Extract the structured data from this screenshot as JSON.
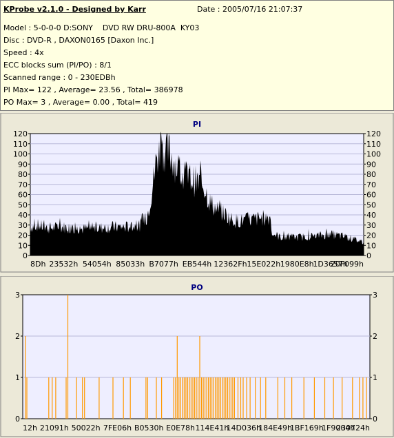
{
  "info": {
    "title": "KProbe v2.1.0 - Designed by Karr",
    "date": "Date : 2005/07/16 21:07:37",
    "lines": [
      "Model : 5-0-0-0 D:SONY    DVD RW DRU-800A  KY03",
      "Disc : DVD-R , DAXON0165 [Daxon Inc.]",
      "Speed : 4x",
      "ECC blocks sum (PI/PO) : 8/1",
      "Scanned range : 0 - 230EDBh",
      "PI Max= 122 , Average= 23.56 , Total= 386978",
      "PO Max= 3 , Average= 0.00 , Total= 419"
    ]
  },
  "colors": {
    "background": "#ece9d8",
    "info_bg": "#ffffe1",
    "plot_bg": "#eeeeff",
    "pi_fill": "#000000",
    "po_bar": "#ff9900",
    "title_blue": "#000080"
  },
  "chart_data": [
    {
      "type": "area",
      "title": "PI",
      "ylim": [
        0,
        120
      ],
      "yticks": [
        0,
        10,
        20,
        30,
        40,
        50,
        60,
        70,
        80,
        90,
        100,
        110,
        120
      ],
      "xtick_labels": [
        "8Dh",
        "23532h",
        "54054h",
        "85033h",
        "B7077h",
        "EB544h",
        "12362Fh",
        "15E022h",
        "1980E8h",
        "1D3657h",
        "20F099h"
      ],
      "grid": true,
      "x_range_hex": [
        "0",
        "230EDB"
      ],
      "profile": [
        [
          0.0,
          28
        ],
        [
          0.02,
          30
        ],
        [
          0.05,
          27
        ],
        [
          0.1,
          28
        ],
        [
          0.15,
          26
        ],
        [
          0.2,
          27
        ],
        [
          0.25,
          28
        ],
        [
          0.3,
          28
        ],
        [
          0.33,
          30
        ],
        [
          0.35,
          38
        ],
        [
          0.36,
          55
        ],
        [
          0.37,
          75
        ],
        [
          0.38,
          98
        ],
        [
          0.4,
          105
        ],
        [
          0.42,
          100
        ],
        [
          0.44,
          88
        ],
        [
          0.46,
          78
        ],
        [
          0.48,
          76
        ],
        [
          0.5,
          72
        ],
        [
          0.52,
          70
        ],
        [
          0.53,
          60
        ],
        [
          0.54,
          52
        ],
        [
          0.56,
          45
        ],
        [
          0.58,
          42
        ],
        [
          0.6,
          36
        ],
        [
          0.62,
          34
        ],
        [
          0.66,
          35
        ],
        [
          0.7,
          37
        ],
        [
          0.72,
          38
        ],
        [
          0.725,
          22
        ],
        [
          0.75,
          18
        ],
        [
          0.8,
          18
        ],
        [
          0.85,
          19
        ],
        [
          0.9,
          21
        ],
        [
          0.95,
          18
        ],
        [
          1.0,
          13
        ]
      ],
      "peak": {
        "at": 0.39,
        "value": 122
      }
    },
    {
      "type": "bar",
      "title": "PO",
      "ylim": [
        0,
        3
      ],
      "yticks": [
        0,
        1,
        2,
        3
      ],
      "xtick_labels": [
        "12h",
        "21091h",
        "50022h",
        "7FE06h",
        "B0530h",
        "E0E78h",
        "114E41h",
        "14D036h",
        "184E49h",
        "1BF169h",
        "1F9004h",
        "230724h"
      ],
      "grid": true,
      "events": [
        [
          0.008,
          2
        ],
        [
          0.012,
          1
        ],
        [
          0.075,
          1
        ],
        [
          0.085,
          1
        ],
        [
          0.095,
          1
        ],
        [
          0.125,
          1
        ],
        [
          0.13,
          3
        ],
        [
          0.155,
          1
        ],
        [
          0.172,
          1
        ],
        [
          0.178,
          1
        ],
        [
          0.22,
          1
        ],
        [
          0.26,
          1
        ],
        [
          0.29,
          1
        ],
        [
          0.31,
          1
        ],
        [
          0.355,
          1
        ],
        [
          0.36,
          1
        ],
        [
          0.385,
          1
        ],
        [
          0.4,
          1
        ],
        [
          0.435,
          1
        ],
        [
          0.44,
          1
        ],
        [
          0.445,
          2
        ],
        [
          0.45,
          1
        ],
        [
          0.455,
          1
        ],
        [
          0.46,
          1
        ],
        [
          0.465,
          1
        ],
        [
          0.47,
          1
        ],
        [
          0.475,
          1
        ],
        [
          0.48,
          1
        ],
        [
          0.485,
          1
        ],
        [
          0.49,
          1
        ],
        [
          0.495,
          1
        ],
        [
          0.5,
          1
        ],
        [
          0.505,
          1
        ],
        [
          0.51,
          2
        ],
        [
          0.515,
          1
        ],
        [
          0.52,
          1
        ],
        [
          0.525,
          1
        ],
        [
          0.53,
          1
        ],
        [
          0.535,
          1
        ],
        [
          0.54,
          1
        ],
        [
          0.545,
          1
        ],
        [
          0.55,
          1
        ],
        [
          0.555,
          1
        ],
        [
          0.56,
          1
        ],
        [
          0.565,
          1
        ],
        [
          0.57,
          1
        ],
        [
          0.575,
          1
        ],
        [
          0.58,
          1
        ],
        [
          0.585,
          1
        ],
        [
          0.59,
          1
        ],
        [
          0.595,
          1
        ],
        [
          0.6,
          1
        ],
        [
          0.605,
          1
        ],
        [
          0.61,
          1
        ],
        [
          0.62,
          1
        ],
        [
          0.628,
          1
        ],
        [
          0.635,
          1
        ],
        [
          0.645,
          1
        ],
        [
          0.655,
          1
        ],
        [
          0.67,
          1
        ],
        [
          0.685,
          1
        ],
        [
          0.7,
          1
        ],
        [
          0.735,
          1
        ],
        [
          0.755,
          1
        ],
        [
          0.775,
          1
        ],
        [
          0.81,
          1
        ],
        [
          0.84,
          1
        ],
        [
          0.87,
          1
        ],
        [
          0.895,
          1
        ],
        [
          0.92,
          1
        ],
        [
          0.95,
          1
        ],
        [
          0.97,
          1
        ],
        [
          0.98,
          1
        ],
        [
          0.99,
          1
        ]
      ]
    }
  ]
}
